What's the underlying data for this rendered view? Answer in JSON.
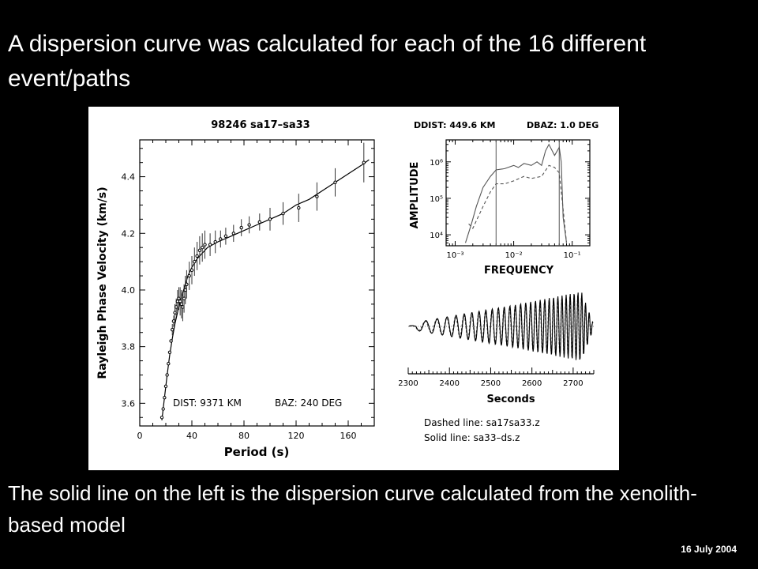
{
  "slide": {
    "title": "A dispersion curve was calculated for each of the 16 different event/paths",
    "caption": "The solid line on the left is the dispersion curve calculated from the xenolith-based model",
    "date": "16 July 2004"
  },
  "chart_data": [
    {
      "type": "scatter",
      "title": "98246 sa17–sa33",
      "xlabel": "Period (s)",
      "ylabel": "Rayleigh Phase Velocity (km/s)",
      "xlim": [
        0,
        180
      ],
      "ylim": [
        3.52,
        4.53
      ],
      "xticks": [
        0,
        40,
        80,
        120,
        160
      ],
      "yticks": [
        3.6,
        3.8,
        4.0,
        4.2,
        4.4
      ],
      "annotation_dist": "DIST:   9371  KM",
      "annotation_baz": "BAZ:  240  DEG",
      "model_curve": {
        "x": [
          17,
          19,
          21,
          23,
          25,
          27,
          29,
          31,
          33,
          35,
          37,
          40,
          44,
          48,
          52,
          56,
          60,
          70,
          80,
          90,
          100,
          110,
          120,
          130,
          140,
          150,
          160,
          170,
          176
        ],
        "y": [
          3.54,
          3.62,
          3.7,
          3.77,
          3.83,
          3.88,
          3.92,
          3.96,
          3.99,
          4.02,
          4.05,
          4.08,
          4.11,
          4.13,
          4.15,
          4.16,
          4.17,
          4.19,
          4.21,
          4.23,
          4.25,
          4.27,
          4.3,
          4.32,
          4.35,
          4.38,
          4.41,
          4.44,
          4.46
        ]
      },
      "points": {
        "x": [
          17,
          18,
          19,
          20,
          21,
          22,
          23,
          24,
          25,
          26,
          27,
          28,
          29,
          30,
          31,
          32,
          33,
          34,
          35,
          36,
          38,
          40,
          42,
          44,
          46,
          48,
          50,
          54,
          58,
          62,
          66,
          72,
          78,
          84,
          92,
          100,
          110,
          122,
          136,
          150,
          172
        ],
        "y": [
          3.55,
          3.58,
          3.62,
          3.66,
          3.7,
          3.74,
          3.78,
          3.82,
          3.86,
          3.89,
          3.92,
          3.94,
          3.96,
          3.97,
          3.96,
          3.95,
          3.94,
          3.97,
          4.0,
          4.02,
          4.05,
          4.07,
          4.1,
          4.12,
          4.14,
          4.15,
          4.16,
          4.16,
          4.17,
          4.18,
          4.19,
          4.2,
          4.22,
          4.23,
          4.24,
          4.25,
          4.27,
          4.29,
          4.33,
          4.38,
          4.45
        ],
        "err": [
          0,
          0,
          0,
          0,
          0,
          0,
          0,
          0,
          0.02,
          0.02,
          0.03,
          0.03,
          0.04,
          0.04,
          0.05,
          0.05,
          0.05,
          0.05,
          0.05,
          0.05,
          0.05,
          0.05,
          0.05,
          0.05,
          0.05,
          0.05,
          0.05,
          0.04,
          0.04,
          0.03,
          0.03,
          0.03,
          0.03,
          0.03,
          0.03,
          0.04,
          0.04,
          0.05,
          0.05,
          0.05,
          0.07
        ]
      }
    },
    {
      "type": "line",
      "title_ddist": "DDIST:  449.6  KM",
      "title_dbaz": "DBAZ:  1.0  DEG",
      "xlabel": "FREQUENCY",
      "ylabel": "AMPLITUDE",
      "xscale": "log",
      "yscale": "log",
      "xlim": [
        0.0007,
        0.2
      ],
      "ylim": [
        5000,
        4000000
      ],
      "xtick_labels": [
        "10⁻³",
        "10⁻²",
        "10⁻¹"
      ],
      "xticks": [
        0.001,
        0.01,
        0.1
      ],
      "ytick_labels": [
        "10⁴",
        "10⁵",
        "10⁶"
      ],
      "yticks": [
        10000,
        100000,
        1000000
      ],
      "filter_band": [
        0.005,
        0.06
      ],
      "series": [
        {
          "style": "solid",
          "x": [
            0.0015,
            0.0019,
            0.0023,
            0.003,
            0.004,
            0.005,
            0.007,
            0.01,
            0.012,
            0.015,
            0.02,
            0.025,
            0.03,
            0.035,
            0.04,
            0.05,
            0.06,
            0.065,
            0.07,
            0.08
          ],
          "y": [
            6000,
            20000,
            60000,
            200000,
            400000,
            600000,
            650000,
            800000,
            700000,
            900000,
            800000,
            1000000,
            800000,
            2000000,
            3000000,
            1500000,
            2500000,
            1000000,
            30000,
            6000
          ]
        },
        {
          "style": "dashed",
          "x": [
            0.0017,
            0.002,
            0.003,
            0.004,
            0.005,
            0.007,
            0.01,
            0.015,
            0.02,
            0.03,
            0.04,
            0.05,
            0.06,
            0.07,
            0.08
          ],
          "y": [
            20000,
            15000,
            60000,
            150000,
            250000,
            250000,
            300000,
            400000,
            350000,
            400000,
            800000,
            700000,
            500000,
            50000,
            6000
          ]
        }
      ]
    },
    {
      "type": "line",
      "xlabel": "Seconds",
      "xlim": [
        2300,
        2750
      ],
      "xticks": [
        2300,
        2400,
        2500,
        2600,
        2700
      ],
      "legend": [
        "Dashed line:  sa17sa33.z",
        "Solid line:  sa33–ds.z"
      ]
    }
  ]
}
